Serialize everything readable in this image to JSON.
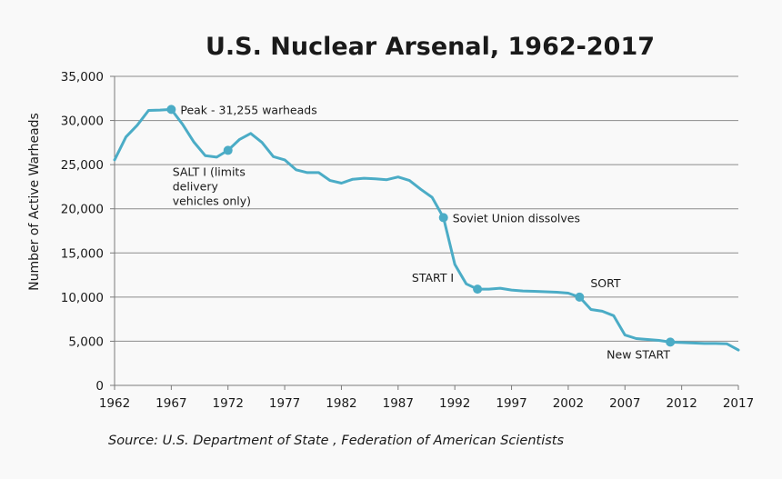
{
  "chart_data": {
    "type": "line",
    "title": "U.S. Nuclear Arsenal, 1962-2017",
    "xlabel": "",
    "ylabel": "Number of Active Warheads",
    "xlim": [
      1962,
      2017
    ],
    "ylim": [
      0,
      35000
    ],
    "grid": true,
    "x_ticks": [
      "1962",
      "1967",
      "1972",
      "1977",
      "1982",
      "1987",
      "1992",
      "1997",
      "2002",
      "2007",
      "2012",
      "2017"
    ],
    "x_tick_values": [
      1962,
      1967,
      1972,
      1977,
      1982,
      1987,
      1992,
      1997,
      2002,
      2007,
      2012,
      2017
    ],
    "y_ticks": [
      "0",
      "5,000",
      "10,000",
      "15,000",
      "20,000",
      "25,000",
      "30,000",
      "35,000"
    ],
    "y_tick_values": [
      0,
      5000,
      10000,
      15000,
      20000,
      25000,
      30000,
      35000
    ],
    "line_color": "#4bacc6",
    "series": [
      {
        "name": "Active Warheads",
        "x": [
          1962,
          1963,
          1964,
          1965,
          1966,
          1967,
          1968,
          1969,
          1970,
          1971,
          1972,
          1973,
          1974,
          1975,
          1976,
          1977,
          1978,
          1979,
          1980,
          1981,
          1982,
          1983,
          1984,
          1985,
          1986,
          1987,
          1988,
          1989,
          1990,
          1991,
          1992,
          1993,
          1994,
          1995,
          1996,
          1997,
          1998,
          1999,
          2000,
          2001,
          2002,
          2003,
          2004,
          2005,
          2006,
          2007,
          2008,
          2009,
          2010,
          2011,
          2012,
          2013,
          2014,
          2015,
          2016,
          2017
        ],
        "values": [
          25540,
          28130,
          29460,
          31140,
          31180,
          31255,
          29560,
          27550,
          26010,
          25850,
          26620,
          27840,
          28540,
          27520,
          25910,
          25540,
          24420,
          24100,
          24100,
          23200,
          22900,
          23350,
          23460,
          23400,
          23300,
          23600,
          23200,
          22200,
          21300,
          19000,
          13700,
          11500,
          10900,
          10900,
          11000,
          10800,
          10700,
          10650,
          10600,
          10550,
          10450,
          10000,
          8600,
          8400,
          7900,
          5700,
          5300,
          5200,
          5100,
          4900,
          4850,
          4800,
          4750,
          4750,
          4700,
          4000
        ]
      }
    ],
    "annotations": [
      {
        "label": "Peak - 31,255 warheads",
        "x": 1967,
        "y": 31255
      },
      {
        "label": "SALT I (limits",
        "label2": "delivery",
        "label3": "vehicles  only)",
        "x": 1972,
        "y": 26620
      },
      {
        "label": "Soviet Union dissolves",
        "x": 1991,
        "y": 19000
      },
      {
        "label": "START I",
        "x": 1994,
        "y": 10900
      },
      {
        "label": "SORT",
        "x": 2003,
        "y": 10000
      },
      {
        "label": "New START",
        "x": 2011,
        "y": 4900
      }
    ],
    "source": "Source: U.S. Department of State , Federation of American Scientists"
  }
}
